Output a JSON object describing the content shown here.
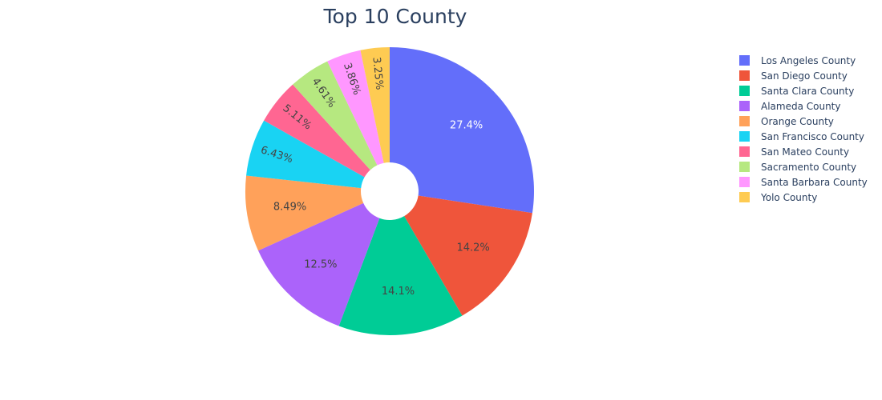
{
  "chart_data": {
    "type": "pie",
    "title": "Top 10 County",
    "hole": true,
    "legend_position": "right",
    "categories": [
      "Los Angeles County",
      "San Diego County",
      "Santa Clara County",
      "Alameda County",
      "Orange County",
      "San Francisco County",
      "San Mateo County",
      "Sacramento County",
      "Santa Barbara County",
      "Yolo County"
    ],
    "values": [
      27.4,
      14.2,
      14.1,
      12.5,
      8.49,
      6.43,
      5.11,
      4.61,
      3.86,
      3.25
    ],
    "labels": [
      "27.4%",
      "14.2%",
      "14.1%",
      "12.5%",
      "8.49%",
      "6.43%",
      "5.11%",
      "4.61%",
      "3.86%",
      "3.25%"
    ],
    "colors": [
      "#636efa",
      "#ef553b",
      "#00cc96",
      "#ab63fa",
      "#ffa15a",
      "#19d3f3",
      "#ff6692",
      "#b6e880",
      "#ff97ff",
      "#fecb52"
    ],
    "label_colors": [
      "#ffffff",
      "#444444",
      "#444444",
      "#444444",
      "#444444",
      "#444444",
      "#444444",
      "#444444",
      "#444444",
      "#444444"
    ]
  }
}
